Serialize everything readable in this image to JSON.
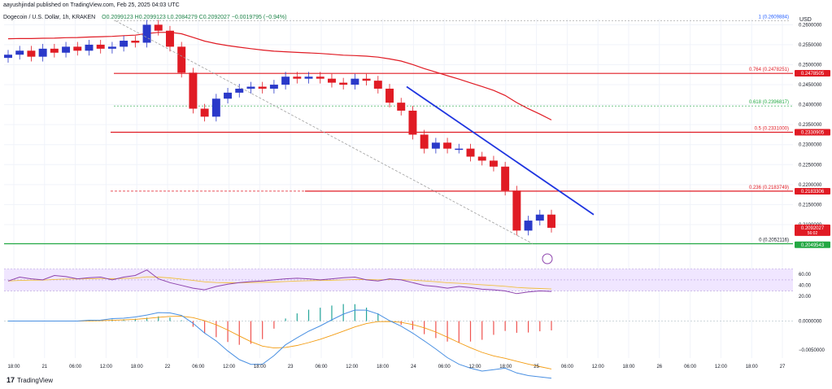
{
  "header": {
    "author_line": "aayushjindal published on TradingView.com, Feb 25, 2025 04:03 UTC",
    "symbol": "Dogecoin / U.S. Dollar, 1h, KRAKEN",
    "ohlc": "O0.2099123 H0.2099123 L0.2084279 C0.2092027 −0.0019795 (−0.94%)"
  },
  "currency_label": "USD",
  "logo_text": "TradingView",
  "colors": {
    "bull": "#2a39c9",
    "bear": "#e01b24",
    "ema": "#e01b24",
    "trendline": "#1f35e0",
    "support": "#23a843",
    "rsi_band": "#f0e6ff",
    "rsi_line": "#8e44ad",
    "rsi_ma": "#f0c040",
    "macd": "#4a90e2",
    "signal": "#f39c12"
  },
  "chart_data": {
    "type": "candlestick",
    "instrument": "Dogecoin / U.S. Dollar",
    "timeframe": "1h",
    "ylim": [
      0.2045,
      0.2615
    ],
    "x_tick_labels": [
      "18:00",
      "21",
      "06:00",
      "12:00",
      "18:00",
      "22",
      "06:00",
      "12:00",
      "18:00",
      "23",
      "06:00",
      "12:00",
      "18:00",
      "24",
      "06:00",
      "12:00",
      "18:00",
      "25",
      "06:00",
      "12:00",
      "18:00",
      "26",
      "06:00",
      "12:00",
      "18:00",
      "27"
    ],
    "y_tick_labels": [
      "0.2600000",
      "0.2550000",
      "0.2500000",
      "0.2450000",
      "0.2400000",
      "0.2350000",
      "0.2300000",
      "0.2250000",
      "0.2200000",
      "0.2150000",
      "0.2100000"
    ],
    "candles_close_approx": [
      0.2525,
      0.2535,
      0.252,
      0.254,
      0.253,
      0.2545,
      0.2535,
      0.255,
      0.254,
      0.2545,
      0.256,
      0.2555,
      0.26,
      0.2585,
      0.2545,
      0.248,
      0.239,
      0.237,
      0.2415,
      0.243,
      0.244,
      0.2445,
      0.244,
      0.245,
      0.247,
      0.2465,
      0.247,
      0.2465,
      0.2455,
      0.245,
      0.2465,
      0.246,
      0.244,
      0.2405,
      0.2385,
      0.2325,
      0.229,
      0.2305,
      0.229,
      0.229,
      0.227,
      0.226,
      0.2245,
      0.2185,
      0.2085,
      0.211,
      0.2125,
      0.2092
    ],
    "fib_levels": [
      {
        "label": "1 (0.2609884)",
        "value": 0.2609884
      },
      {
        "label": "0.764 (0.2478251)",
        "value": 0.2478251
      },
      {
        "label": "0.618 (0.2396817)",
        "value": 0.2396817
      },
      {
        "label": "0.5 (0.2331000)",
        "value": 0.2331
      },
      {
        "label": "0.236 (0.2183749)",
        "value": 0.2183749
      },
      {
        "label": "0 (0.2052116)",
        "value": 0.2052116
      }
    ],
    "price_tags": [
      {
        "text": "0.2478505",
        "value": 0.2478505,
        "color": "#e01b24"
      },
      {
        "text": "0.2330905",
        "value": 0.2330905,
        "color": "#e01b24"
      },
      {
        "text": "0.2183306",
        "value": 0.2183306,
        "color": "#e01b24"
      },
      {
        "text": "0.2092027",
        "value": 0.2092027,
        "color": "#e01b24"
      },
      {
        "text": "0.2049543",
        "value": 0.2049543,
        "color": "#23a843"
      }
    ],
    "price_tag_sub": "56:02",
    "rsi": {
      "y_tick_labels": [
        "60.00",
        "40.00",
        "20.00"
      ],
      "band": [
        30,
        70
      ],
      "values": [
        48,
        55,
        52,
        50,
        58,
        56,
        52,
        54,
        55,
        50,
        55,
        58,
        68,
        52,
        45,
        40,
        35,
        32,
        38,
        42,
        45,
        47,
        48,
        50,
        52,
        53,
        52,
        50,
        52,
        54,
        55,
        50,
        48,
        52,
        50,
        45,
        40,
        38,
        35,
        38,
        36,
        33,
        32,
        30,
        25,
        28,
        30,
        29
      ]
    },
    "macd": {
      "y_tick_labels": [
        "0.0000000",
        "−0.0050000"
      ],
      "ylim": [
        -0.0064,
        0.0012
      ]
    }
  }
}
